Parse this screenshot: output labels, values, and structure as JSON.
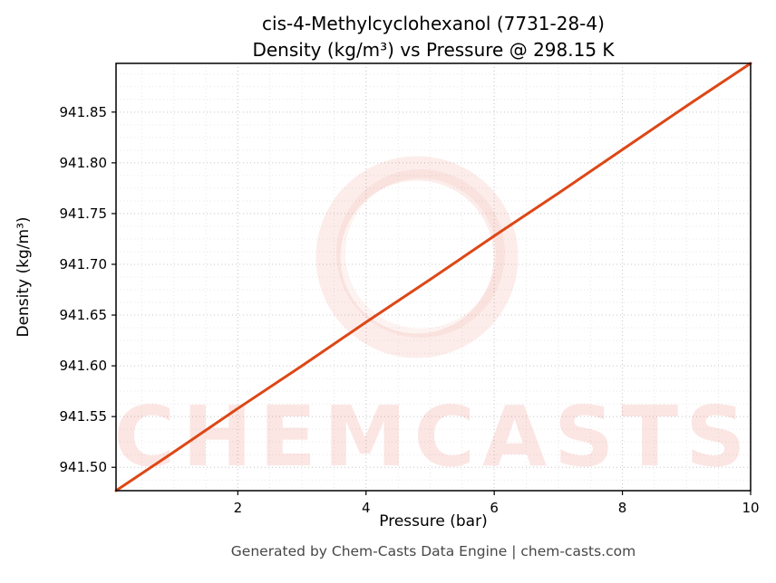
{
  "figure": {
    "title_line1": "cis-4-Methylcyclohexanol (7731-28-4)",
    "title_line2": "Density (kg/m³) vs Pressure @ 298.15 K",
    "footer": "Generated by Chem-Casts Data Engine | chem-casts.com",
    "watermark_text": "CHEMCASTS"
  },
  "chart_data": {
    "type": "line",
    "title": "cis-4-Methylcyclohexanol (7731-28-4) Density (kg/m³) vs Pressure @ 298.15 K",
    "xlabel": "Pressure (bar)",
    "ylabel": "Density (kg/m³)",
    "xlim": [
      0.1,
      10
    ],
    "ylim": [
      941.477,
      941.898
    ],
    "xticks": [
      2,
      4,
      6,
      8,
      10
    ],
    "yticks": [
      941.5,
      941.55,
      941.6,
      941.65,
      941.7,
      941.75,
      941.8,
      941.85
    ],
    "grid": true,
    "legend": "none",
    "line_color": "#dd4716",
    "watermark_color": "#e05038",
    "series": [
      {
        "name": "density",
        "x": [
          0.1,
          1,
          2,
          3,
          4,
          5,
          6,
          7,
          8,
          9,
          10
        ],
        "y": [
          941.477,
          941.515,
          941.558,
          941.6,
          941.643,
          941.685,
          941.728,
          941.77,
          941.813,
          941.856,
          941.898
        ]
      }
    ]
  }
}
